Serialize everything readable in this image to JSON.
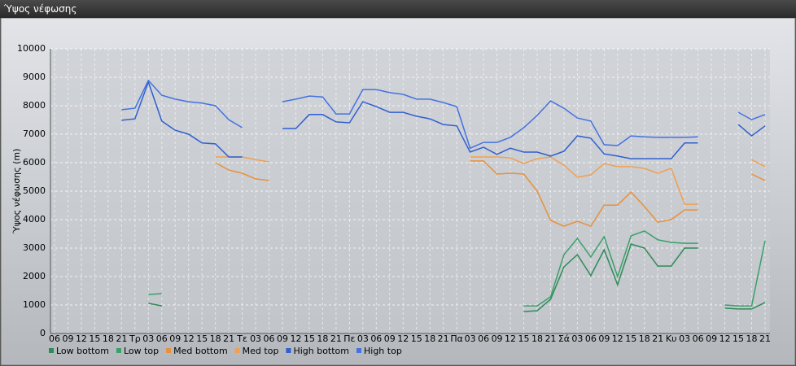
{
  "window": {
    "title": "Ύψος νέφωσης"
  },
  "chart_data": {
    "type": "line",
    "y_label": "Ύψος νέφωσης (m)",
    "categories": [
      "06",
      "09",
      "12",
      "15",
      "18",
      "21",
      "Τρ",
      "03",
      "06",
      "09",
      "12",
      "15",
      "18",
      "21",
      "Τε",
      "03",
      "06",
      "09",
      "12",
      "15",
      "18",
      "21",
      "Πε",
      "03",
      "06",
      "09",
      "12",
      "15",
      "18",
      "21",
      "Πα",
      "03",
      "06",
      "09",
      "12",
      "15",
      "18",
      "21",
      "Σά",
      "03",
      "06",
      "09",
      "12",
      "15",
      "18",
      "21",
      "Κυ",
      "03",
      "06",
      "09",
      "12",
      "15",
      "18",
      "21"
    ],
    "ylim": [
      0,
      10000
    ],
    "yticks": [
      0,
      1000,
      2000,
      3000,
      4000,
      5000,
      6000,
      7000,
      8000,
      9000,
      10000
    ],
    "grid": true,
    "legend": "bottom",
    "series": [
      {
        "name": "Low bottom",
        "color": "#2e8b57",
        "values": [
          null,
          null,
          null,
          null,
          null,
          null,
          null,
          1060,
          970,
          null,
          null,
          null,
          null,
          null,
          null,
          null,
          null,
          null,
          null,
          null,
          null,
          null,
          null,
          null,
          null,
          null,
          null,
          null,
          null,
          null,
          null,
          null,
          null,
          null,
          null,
          770,
          800,
          1200,
          2340,
          2770,
          2030,
          2940,
          1710,
          3140,
          3000,
          2370,
          2370,
          3000,
          3000,
          null,
          890,
          860,
          860,
          1090
        ]
      },
      {
        "name": "Low top",
        "color": "#3aa06a",
        "values": [
          null,
          null,
          null,
          null,
          null,
          null,
          null,
          1370,
          1400,
          null,
          null,
          null,
          null,
          null,
          null,
          null,
          null,
          null,
          null,
          null,
          null,
          null,
          null,
          null,
          null,
          null,
          null,
          null,
          null,
          null,
          null,
          null,
          null,
          null,
          null,
          970,
          970,
          1290,
          2770,
          3340,
          2690,
          3400,
          2000,
          3430,
          3600,
          3290,
          3200,
          3170,
          3170,
          null,
          1000,
          970,
          970,
          3260
        ]
      },
      {
        "name": "Med bottom",
        "color": "#e8903a",
        "values": [
          null,
          null,
          null,
          null,
          null,
          null,
          null,
          null,
          null,
          null,
          null,
          null,
          6000,
          5740,
          5630,
          5430,
          5370,
          null,
          null,
          null,
          null,
          null,
          null,
          null,
          null,
          null,
          null,
          null,
          null,
          null,
          null,
          6060,
          6060,
          5600,
          5630,
          5600,
          5000,
          3970,
          3770,
          3940,
          3770,
          4510,
          4510,
          4970,
          4460,
          3910,
          4000,
          4340,
          4340,
          null,
          null,
          null,
          5600,
          5370
        ]
      },
      {
        "name": "Med top",
        "color": "#f0a050",
        "values": [
          null,
          null,
          null,
          null,
          null,
          null,
          null,
          null,
          null,
          null,
          null,
          null,
          6200,
          6200,
          6200,
          6110,
          6030,
          null,
          null,
          null,
          null,
          null,
          null,
          null,
          null,
          null,
          null,
          null,
          null,
          null,
          null,
          6200,
          6200,
          6200,
          6170,
          5970,
          6140,
          6200,
          5910,
          5490,
          5570,
          5970,
          5860,
          5860,
          5800,
          5630,
          5800,
          4540,
          4540,
          null,
          null,
          null,
          6110,
          5860
        ]
      },
      {
        "name": "High bottom",
        "color": "#2f5fd0",
        "values": [
          null,
          null,
          null,
          null,
          null,
          7490,
          7540,
          8830,
          7460,
          7140,
          7000,
          6690,
          6660,
          6200,
          6200,
          null,
          null,
          7200,
          7200,
          7690,
          7690,
          7430,
          7400,
          8140,
          7970,
          7770,
          7770,
          7630,
          7540,
          7340,
          7290,
          6370,
          6540,
          6290,
          6510,
          6370,
          6370,
          6230,
          6400,
          6940,
          6860,
          6310,
          6230,
          6140,
          6140,
          6140,
          6140,
          6690,
          6690,
          null,
          null,
          7340,
          6940,
          7290
        ]
      },
      {
        "name": "High top",
        "color": "#4472e0",
        "values": [
          null,
          null,
          null,
          null,
          null,
          7860,
          7910,
          8890,
          8370,
          8230,
          8140,
          8090,
          8000,
          7510,
          7230,
          null,
          null,
          8140,
          8230,
          8340,
          8310,
          7710,
          7710,
          8570,
          8570,
          8460,
          8400,
          8230,
          8230,
          8110,
          7970,
          6510,
          6710,
          6710,
          6890,
          7230,
          7660,
          8170,
          7910,
          7570,
          7460,
          6630,
          6600,
          6940,
          6910,
          6890,
          6890,
          6890,
          6910,
          null,
          null,
          7770,
          7510,
          7690
        ]
      }
    ]
  }
}
